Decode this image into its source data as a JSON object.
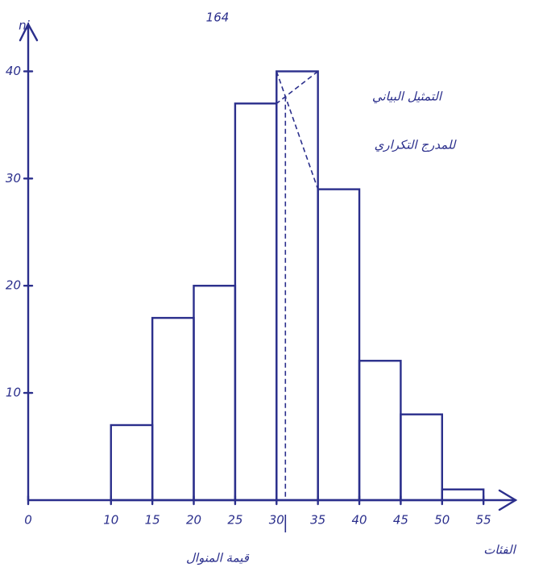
{
  "chart_data": {
    "type": "histogram",
    "title": "164",
    "ylabel": "ni",
    "xlabel": "الفئات",
    "annotations": [
      "التمثيل البياني",
      "للمدرج التكراري",
      "قيمة المنوال"
    ],
    "bins": [
      10,
      15,
      20,
      25,
      30,
      35,
      40,
      45,
      50,
      55
    ],
    "values": [
      7,
      17,
      20,
      37,
      40,
      29,
      13,
      8,
      1
    ],
    "color": "#2b2f8c",
    "xlim": [
      0,
      58
    ],
    "xticks": [
      0,
      10,
      15,
      20,
      25,
      30,
      35,
      40,
      45,
      50,
      55
    ],
    "ylim": [
      0,
      45
    ],
    "yticks": [
      10,
      20,
      30,
      40
    ]
  }
}
